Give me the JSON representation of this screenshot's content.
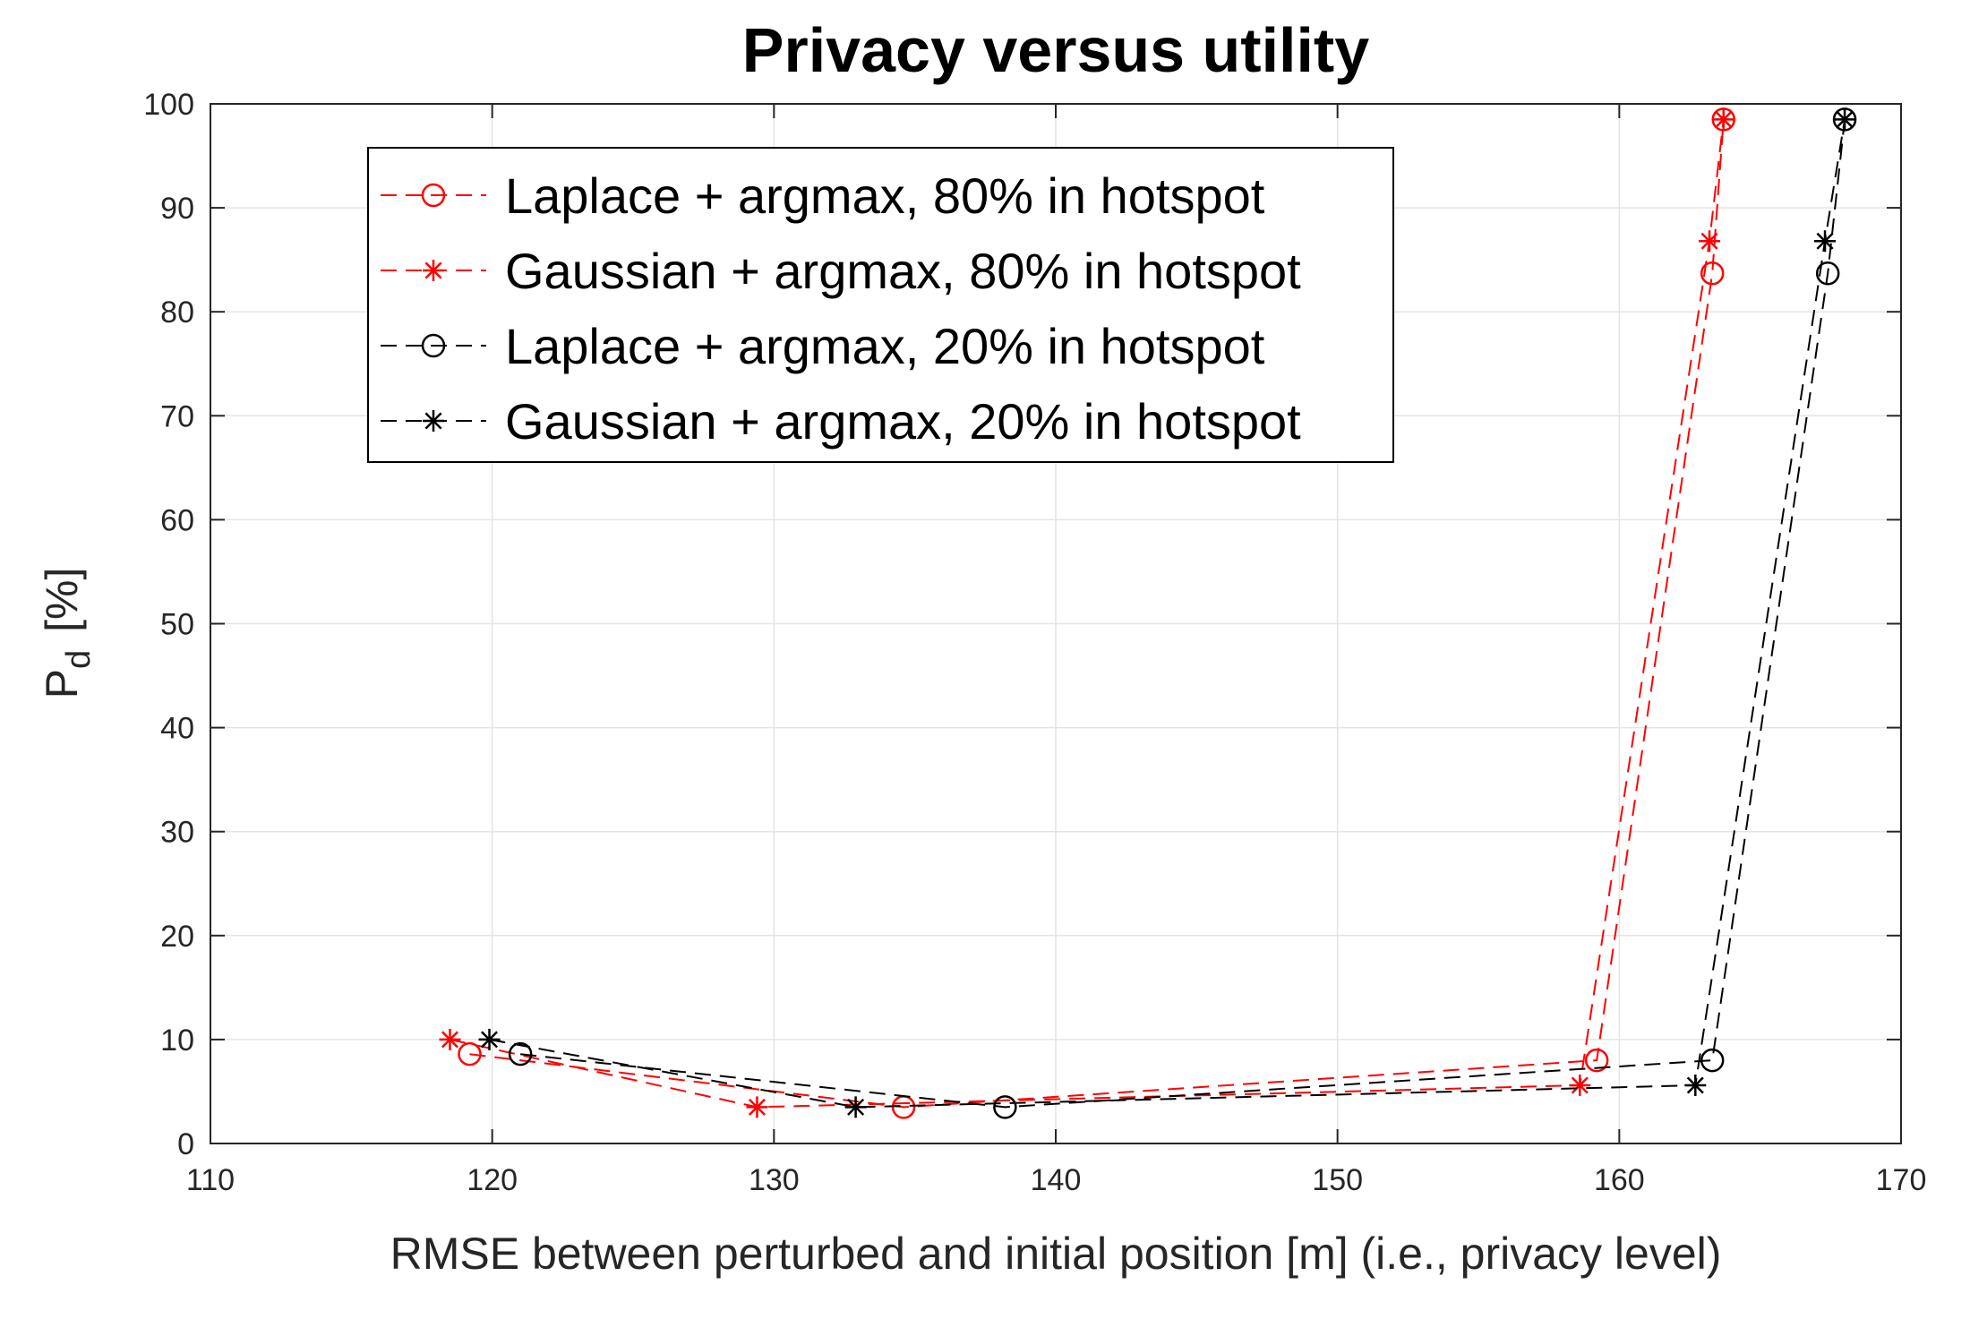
{
  "chart_data": {
    "type": "line",
    "title": "Privacy versus utility",
    "xlabel": "RMSE between perturbed and initial position [m] (i.e., privacy level)",
    "ylabel": {
      "main": "P",
      "subscript": "d",
      "unit": "[%]"
    },
    "xlim": [
      110,
      170
    ],
    "ylim": [
      0,
      100
    ],
    "xticks": [
      110,
      120,
      130,
      140,
      150,
      160,
      170
    ],
    "yticks": [
      0,
      10,
      20,
      30,
      40,
      50,
      60,
      70,
      80,
      90,
      100
    ],
    "grid": true,
    "legend_position": "top-left",
    "series": [
      {
        "name": "Laplace + argmax, 80% in hotspot",
        "color": "#ff0000",
        "marker": "circle",
        "line": "dashed",
        "x": [
          119.2,
          134.6,
          159.2,
          163.3,
          163.7
        ],
        "y": [
          8.6,
          3.5,
          8.0,
          83.7,
          98.5
        ]
      },
      {
        "name": "Gaussian + argmax, 80% in hotspot",
        "color": "#ff0000",
        "marker": "star",
        "line": "dashed",
        "x": [
          118.5,
          129.4,
          158.6,
          163.2,
          163.7
        ],
        "y": [
          10.0,
          3.5,
          5.6,
          86.8,
          98.5
        ]
      },
      {
        "name": "Laplace + argmax, 20% in hotspot",
        "color": "#000000",
        "marker": "circle",
        "line": "dashed",
        "x": [
          121.0,
          138.2,
          163.3,
          167.4,
          168.0
        ],
        "y": [
          8.6,
          3.5,
          8.0,
          83.7,
          98.5
        ]
      },
      {
        "name": "Gaussian + argmax, 20% in hotspot",
        "color": "#000000",
        "marker": "star",
        "line": "dashed",
        "x": [
          119.9,
          132.9,
          162.7,
          167.3,
          168.0
        ],
        "y": [
          10.0,
          3.5,
          5.6,
          86.8,
          98.5
        ]
      }
    ]
  }
}
